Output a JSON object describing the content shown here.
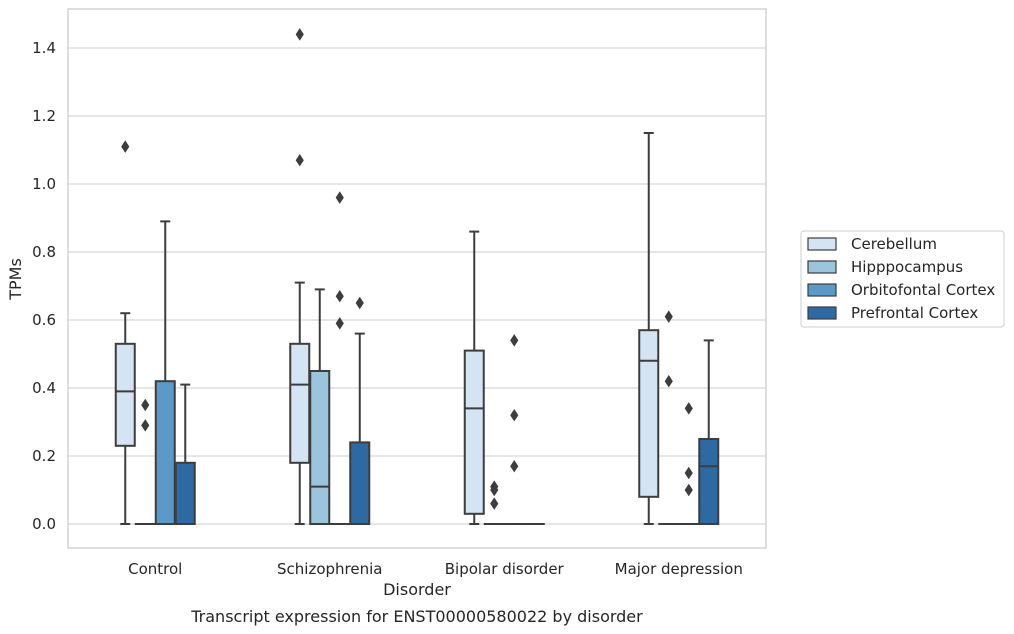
{
  "chart_data": {
    "type": "boxplot",
    "title": "",
    "caption": "Transcript expression for ENST00000580022 by disorder",
    "xlabel": "Disorder",
    "ylabel": "TPMs",
    "ylim": [
      -0.07,
      1.52
    ],
    "yticks": [
      0.0,
      0.2,
      0.4,
      0.6,
      0.8,
      1.0,
      1.2,
      1.4
    ],
    "ytick_labels": [
      "0.0",
      "0.2",
      "0.4",
      "0.6",
      "0.8",
      "1.0",
      "1.2",
      "1.4"
    ],
    "grid": "horizontal",
    "legend_position": "right",
    "categories": [
      "Control",
      "Schizophrenia",
      "Bipolar disorder",
      "Major depression"
    ],
    "series": [
      {
        "name": "Cerebellum",
        "color": "#d4e4f3",
        "boxes": [
          {
            "q1": 0.23,
            "median": 0.39,
            "q3": 0.53,
            "whisker_low": 0.0,
            "whisker_high": 0.62,
            "outliers": [
              1.11
            ]
          },
          {
            "q1": 0.18,
            "median": 0.41,
            "q3": 0.53,
            "whisker_low": 0.0,
            "whisker_high": 0.71,
            "outliers": [
              1.44,
              1.07
            ]
          },
          {
            "q1": 0.03,
            "median": 0.34,
            "q3": 0.51,
            "whisker_low": 0.0,
            "whisker_high": 0.86,
            "outliers": []
          },
          {
            "q1": 0.08,
            "median": 0.48,
            "q3": 0.57,
            "whisker_low": 0.0,
            "whisker_high": 1.15,
            "outliers": []
          }
        ]
      },
      {
        "name": "Hipppocampus",
        "color": "#9bc4dd",
        "boxes": [
          {
            "q1": 0.0,
            "median": 0.0,
            "q3": 0.0,
            "whisker_low": 0.0,
            "whisker_high": 0.0,
            "outliers": [
              0.35,
              0.29
            ]
          },
          {
            "q1": 0.0,
            "median": 0.11,
            "q3": 0.45,
            "whisker_low": 0.0,
            "whisker_high": 0.69,
            "outliers": []
          },
          {
            "q1": 0.0,
            "median": 0.0,
            "q3": 0.0,
            "whisker_low": 0.0,
            "whisker_high": 0.0,
            "outliers": [
              0.11,
              0.1,
              0.06
            ]
          },
          {
            "q1": 0.0,
            "median": 0.0,
            "q3": 0.0,
            "whisker_low": 0.0,
            "whisker_high": 0.0,
            "outliers": [
              0.61,
              0.42
            ]
          }
        ]
      },
      {
        "name": "Orbitofontal Cortex",
        "color": "#5b9ac8",
        "boxes": [
          {
            "q1": 0.0,
            "median": 0.0,
            "q3": 0.42,
            "whisker_low": 0.0,
            "whisker_high": 0.89,
            "outliers": []
          },
          {
            "q1": 0.0,
            "median": 0.0,
            "q3": 0.0,
            "whisker_low": 0.0,
            "whisker_high": 0.0,
            "outliers": [
              0.96,
              0.67,
              0.59
            ]
          },
          {
            "q1": 0.0,
            "median": 0.0,
            "q3": 0.0,
            "whisker_low": 0.0,
            "whisker_high": 0.0,
            "outliers": [
              0.54,
              0.32,
              0.17
            ]
          },
          {
            "q1": 0.0,
            "median": 0.0,
            "q3": 0.0,
            "whisker_low": 0.0,
            "whisker_high": 0.0,
            "outliers": [
              0.34,
              0.15,
              0.1
            ]
          }
        ]
      },
      {
        "name": "Prefrontal Cortex",
        "color": "#2d6aa3",
        "boxes": [
          {
            "q1": 0.0,
            "median": 0.0,
            "q3": 0.18,
            "whisker_low": 0.0,
            "whisker_high": 0.41,
            "outliers": []
          },
          {
            "q1": 0.0,
            "median": 0.0,
            "q3": 0.24,
            "whisker_low": 0.0,
            "whisker_high": 0.56,
            "outliers": [
              0.65
            ]
          },
          {
            "q1": 0.0,
            "median": 0.0,
            "q3": 0.0,
            "whisker_low": 0.0,
            "whisker_high": 0.0,
            "outliers": []
          },
          {
            "q1": 0.0,
            "median": 0.17,
            "q3": 0.25,
            "whisker_low": 0.0,
            "whisker_high": 0.54,
            "outliers": []
          }
        ]
      }
    ]
  }
}
